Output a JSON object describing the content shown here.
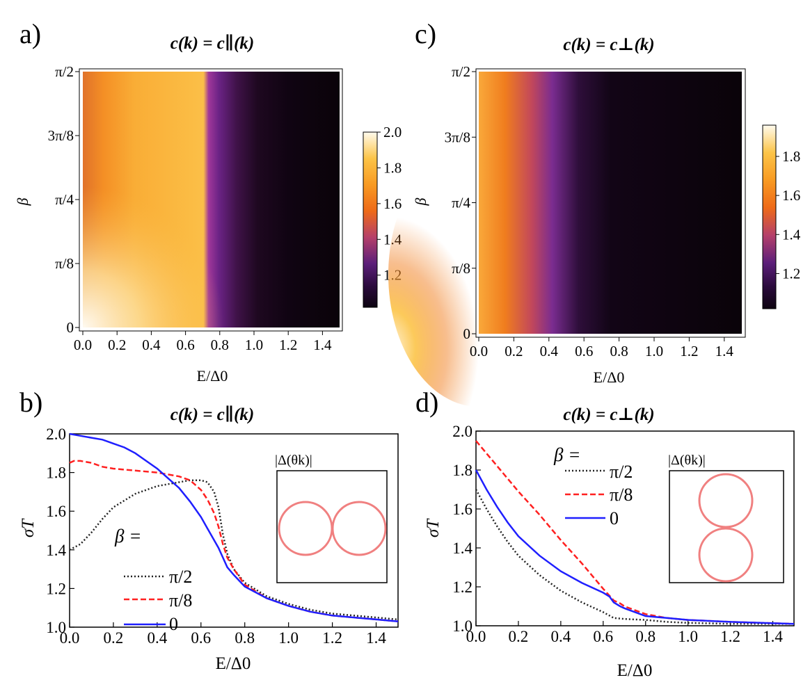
{
  "panels": {
    "a": {
      "label": "a)",
      "title": "c(k) = c∥(k)"
    },
    "b": {
      "label": "b)",
      "title": "c(k) = c∥(k)"
    },
    "c": {
      "label": "c)",
      "title": "c(k) = c⊥(k)"
    },
    "d": {
      "label": "d)",
      "title": "c(k) = c⊥(k)"
    }
  },
  "heatmap_axes": {
    "xlabel": "E/Δ0",
    "ylabel": "β",
    "x_ticks": [
      "0.0",
      "0.2",
      "0.4",
      "0.6",
      "0.8",
      "1.0",
      "1.2",
      "1.4"
    ],
    "y_ticks": [
      "0",
      "π/8",
      "π/4",
      "3π/8",
      "π/2"
    ]
  },
  "colorbars": {
    "a": {
      "ticks": [
        "2.0",
        "1.8",
        "1.6",
        "1.4",
        "1.2"
      ]
    },
    "c": {
      "ticks": [
        "1.8",
        "1.6",
        "1.4",
        "1.2"
      ]
    }
  },
  "line_axes": {
    "xlabel": "E/Δ0",
    "ylabel": "σT",
    "x_ticks": [
      "0.0",
      "0.2",
      "0.4",
      "0.6",
      "0.8",
      "1.0",
      "1.2",
      "1.4"
    ],
    "y_ticks": [
      "1.0",
      "1.2",
      "1.4",
      "1.6",
      "1.8",
      "2.0"
    ]
  },
  "legend": {
    "title": "β =",
    "entries": [
      "π/2",
      "π/8",
      "0"
    ]
  },
  "insets": {
    "b": {
      "label": "|Δ(θk)|"
    },
    "d": {
      "label": "|Δ(θk)|"
    }
  },
  "colors": {
    "pi2": "#222222",
    "pi8": "#ff2020",
    "zero": "#1f1fff",
    "inset_circle": "#f08080"
  },
  "chart_data": [
    {
      "type": "heatmap",
      "panel": "a",
      "title": "c(k) = c∥(k)",
      "xlabel": "E/Δ0",
      "ylabel": "β",
      "xlim": [
        0,
        1.5
      ],
      "ylim_labels": [
        "0",
        "π/8",
        "π/4",
        "3π/8",
        "π/2"
      ],
      "colorbar_range": [
        1.02,
        2.0
      ],
      "colormap": [
        "#0d0410",
        "#2a0a3c",
        "#5c1f7a",
        "#ee6a18",
        "#f89a22",
        "#fcc448",
        "#fde79a",
        "#fffaf0"
      ],
      "description_grid_x": [
        0.0,
        0.1,
        0.2,
        0.3,
        0.4,
        0.5,
        0.6,
        0.68,
        0.72,
        0.8,
        0.9,
        1.0,
        1.2,
        1.5
      ],
      "values_beta_0": [
        2.0,
        1.97,
        1.92,
        1.89,
        1.87,
        1.86,
        1.86,
        1.8,
        1.25,
        1.15,
        1.09,
        1.07,
        1.05,
        1.03
      ],
      "values_beta_pi8": [
        1.82,
        1.82,
        1.81,
        1.8,
        1.8,
        1.79,
        1.78,
        1.72,
        1.25,
        1.15,
        1.09,
        1.07,
        1.05,
        1.03
      ],
      "values_beta_pi2": [
        1.4,
        1.48,
        1.6,
        1.67,
        1.71,
        1.73,
        1.76,
        1.7,
        1.3,
        1.17,
        1.1,
        1.07,
        1.05,
        1.03
      ]
    },
    {
      "type": "heatmap",
      "panel": "c",
      "title": "c(k) = c⊥(k)",
      "xlabel": "E/Δ0",
      "ylabel": "β",
      "xlim": [
        0,
        1.5
      ],
      "ylim_labels": [
        "0",
        "π/8",
        "π/4",
        "3π/8",
        "π/2"
      ],
      "colorbar_range": [
        1.02,
        1.96
      ],
      "colormap": [
        "#0d0410",
        "#2a0a3c",
        "#5c1f7a",
        "#ee6a18",
        "#f89a22",
        "#fcc448",
        "#fde79a",
        "#fffaf0"
      ],
      "description_grid_x": [
        0.0,
        0.1,
        0.2,
        0.3,
        0.4,
        0.5,
        0.6,
        0.7,
        0.8,
        1.0,
        1.5
      ],
      "values_beta_0": [
        1.8,
        1.68,
        1.57,
        1.47,
        1.38,
        1.28,
        1.18,
        1.1,
        1.06,
        1.03,
        1.02
      ],
      "values_beta_pi8": [
        1.95,
        1.85,
        1.75,
        1.66,
        1.57,
        1.47,
        1.36,
        1.12,
        1.07,
        1.04,
        1.02
      ],
      "values_beta_pi2": [
        1.7,
        1.48,
        1.33,
        1.24,
        1.17,
        1.12,
        1.06,
        1.04,
        1.03,
        1.02,
        1.02
      ]
    },
    {
      "type": "line",
      "panel": "b",
      "title": "c(k) = c∥(k)",
      "xlabel": "E/Δ0",
      "ylabel": "σT",
      "xlim": [
        0,
        1.5
      ],
      "ylim": [
        1.0,
        2.0
      ],
      "series": [
        {
          "name": "π/2",
          "style": "dotted",
          "x": [
            0,
            0.05,
            0.1,
            0.15,
            0.2,
            0.3,
            0.4,
            0.5,
            0.55,
            0.6,
            0.63,
            0.66,
            0.68,
            0.7,
            0.72,
            0.75,
            0.8,
            0.9,
            1.0,
            1.1,
            1.2,
            1.3,
            1.4,
            1.5
          ],
          "y": [
            1.4,
            1.43,
            1.49,
            1.56,
            1.62,
            1.69,
            1.73,
            1.75,
            1.76,
            1.76,
            1.75,
            1.7,
            1.62,
            1.48,
            1.38,
            1.3,
            1.23,
            1.16,
            1.12,
            1.09,
            1.07,
            1.06,
            1.05,
            1.04
          ]
        },
        {
          "name": "π/8",
          "style": "dashed",
          "x": [
            0,
            0.02,
            0.05,
            0.1,
            0.15,
            0.2,
            0.3,
            0.4,
            0.5,
            0.55,
            0.6,
            0.63,
            0.66,
            0.68,
            0.7,
            0.72,
            0.75,
            0.8,
            0.9,
            1.0,
            1.1,
            1.2,
            1.3,
            1.4,
            1.5
          ],
          "y": [
            1.85,
            1.86,
            1.86,
            1.85,
            1.83,
            1.82,
            1.81,
            1.8,
            1.78,
            1.76,
            1.71,
            1.66,
            1.59,
            1.52,
            1.43,
            1.36,
            1.3,
            1.22,
            1.15,
            1.11,
            1.08,
            1.06,
            1.05,
            1.04,
            1.03
          ]
        },
        {
          "name": "0",
          "style": "solid",
          "x": [
            0,
            0.05,
            0.1,
            0.15,
            0.2,
            0.25,
            0.3,
            0.35,
            0.4,
            0.45,
            0.5,
            0.55,
            0.6,
            0.63,
            0.66,
            0.68,
            0.7,
            0.72,
            0.75,
            0.8,
            0.9,
            1.0,
            1.1,
            1.2,
            1.3,
            1.4,
            1.5
          ],
          "y": [
            2.0,
            1.99,
            1.98,
            1.97,
            1.95,
            1.93,
            1.9,
            1.86,
            1.82,
            1.77,
            1.72,
            1.65,
            1.57,
            1.51,
            1.45,
            1.41,
            1.36,
            1.31,
            1.27,
            1.21,
            1.15,
            1.11,
            1.08,
            1.06,
            1.05,
            1.04,
            1.03
          ]
        }
      ]
    },
    {
      "type": "line",
      "panel": "d",
      "title": "c(k) = c⊥(k)",
      "xlabel": "E/Δ0",
      "ylabel": "σT",
      "xlim": [
        0,
        1.5
      ],
      "ylim": [
        1.0,
        2.0
      ],
      "series": [
        {
          "name": "π/2",
          "style": "dotted",
          "x": [
            0,
            0.05,
            0.1,
            0.15,
            0.2,
            0.3,
            0.4,
            0.5,
            0.6,
            0.65,
            0.7,
            0.8,
            0.9,
            1.0,
            1.2,
            1.5
          ],
          "y": [
            1.7,
            1.6,
            1.51,
            1.43,
            1.36,
            1.26,
            1.18,
            1.12,
            1.07,
            1.04,
            1.035,
            1.03,
            1.02,
            1.015,
            1.01,
            1.01
          ]
        },
        {
          "name": "π/8",
          "style": "dashed",
          "x": [
            0,
            0.1,
            0.2,
            0.3,
            0.4,
            0.5,
            0.6,
            0.65,
            0.68,
            0.7,
            0.8,
            0.9,
            1.0,
            1.2,
            1.5
          ],
          "y": [
            1.95,
            1.82,
            1.69,
            1.57,
            1.44,
            1.32,
            1.19,
            1.13,
            1.115,
            1.1,
            1.06,
            1.04,
            1.03,
            1.02,
            1.01
          ]
        },
        {
          "name": "0",
          "style": "solid",
          "x": [
            0,
            0.05,
            0.1,
            0.15,
            0.2,
            0.3,
            0.4,
            0.5,
            0.6,
            0.63,
            0.65,
            0.68,
            0.7,
            0.8,
            0.9,
            1.0,
            1.2,
            1.5
          ],
          "y": [
            1.8,
            1.7,
            1.61,
            1.53,
            1.46,
            1.36,
            1.28,
            1.22,
            1.17,
            1.15,
            1.12,
            1.1,
            1.09,
            1.05,
            1.04,
            1.03,
            1.02,
            1.01
          ]
        }
      ]
    }
  ]
}
